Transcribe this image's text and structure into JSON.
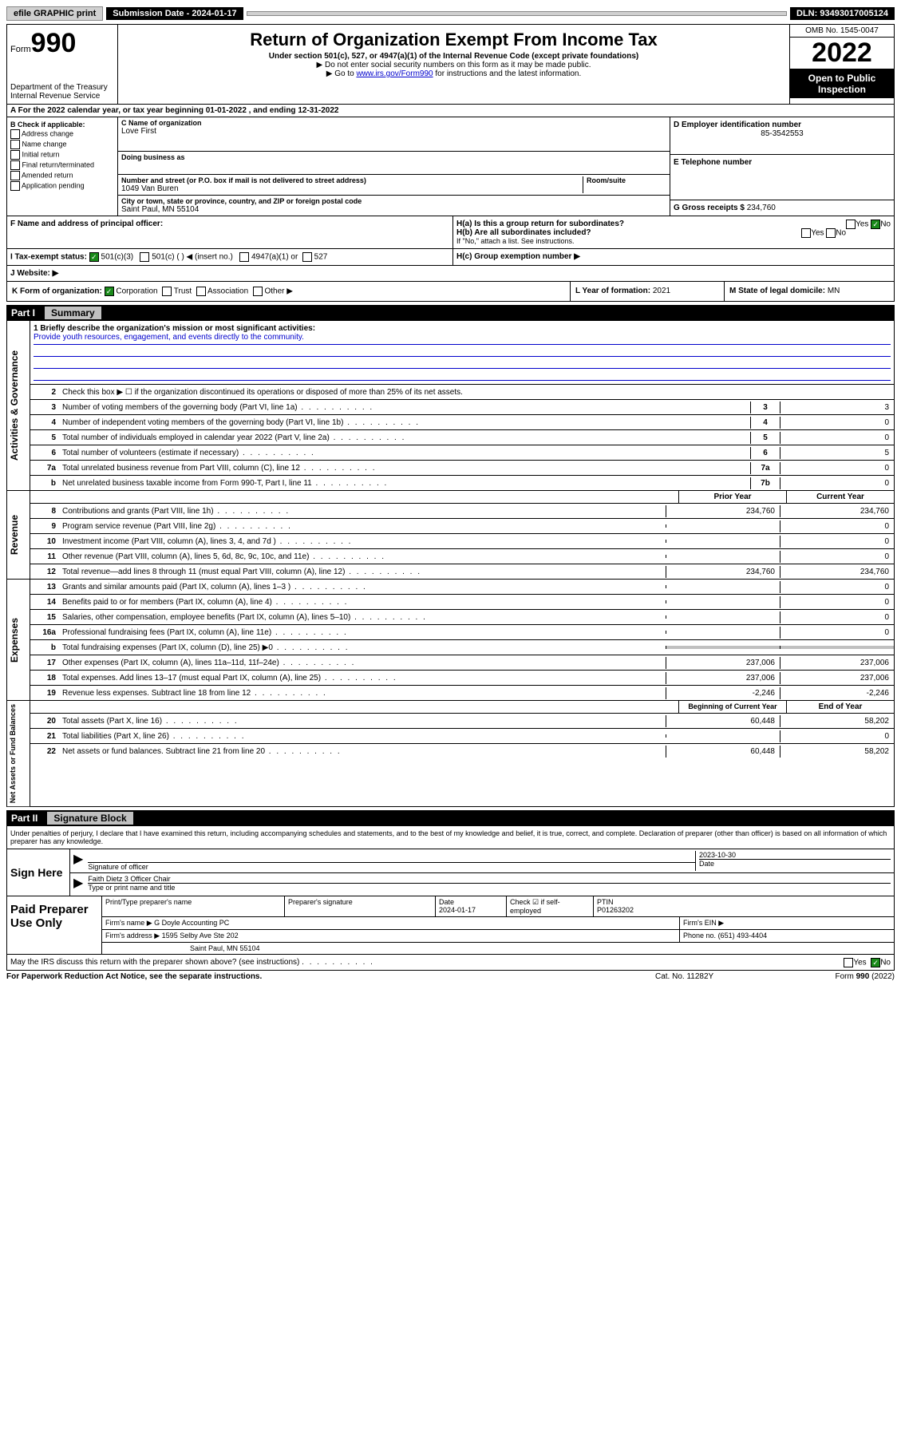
{
  "topbar": {
    "efile": "efile GRAPHIC print",
    "subdate_label": "Submission Date - 2024-01-17",
    "dln": "DLN: 93493017005124"
  },
  "header": {
    "form_label": "Form",
    "form_num": "990",
    "dept": "Department of the Treasury\nInternal Revenue Service",
    "title": "Return of Organization Exempt From Income Tax",
    "subtitle": "Under section 501(c), 527, or 4947(a)(1) of the Internal Revenue Code (except private foundations)",
    "note1": "▶ Do not enter social security numbers on this form as it may be made public.",
    "note2_pre": "▶ Go to ",
    "note2_link": "www.irs.gov/Form990",
    "note2_post": " for instructions and the latest information.",
    "omb": "OMB No. 1545-0047",
    "year": "2022",
    "open": "Open to Public Inspection"
  },
  "row_a": "A For the 2022 calendar year, or tax year beginning 01-01-2022    , and ending 12-31-2022",
  "section_b": {
    "label": "B Check if applicable:",
    "opts": [
      "Address change",
      "Name change",
      "Initial return",
      "Final return/terminated",
      "Amended return",
      "Application pending"
    ]
  },
  "section_c": {
    "name_label": "C Name of organization",
    "name": "Love First",
    "dba": "Doing business as",
    "addr_label": "Number and street (or P.O. box if mail is not delivered to street address)",
    "room": "Room/suite",
    "addr": "1049 Van Buren",
    "city_label": "City or town, state or province, country, and ZIP or foreign postal code",
    "city": "Saint Paul, MN  55104"
  },
  "section_d": {
    "label": "D Employer identification number",
    "val": "85-3542553"
  },
  "section_e": {
    "label": "E Telephone number",
    "val": ""
  },
  "section_g": {
    "label": "G Gross receipts $",
    "val": "234,760"
  },
  "section_f": "F  Name and address of principal officer:",
  "section_h": {
    "a": "H(a)  Is this a group return for subordinates?",
    "b": "H(b)  Are all subordinates included?",
    "b_note": "If \"No,\" attach a list. See instructions.",
    "c": "H(c)  Group exemption number ▶"
  },
  "tax_status": {
    "label": "I  Tax-exempt status:",
    "opts": [
      "501(c)(3)",
      "501(c) (  ) ◀ (insert no.)",
      "4947(a)(1) or",
      "527"
    ]
  },
  "website": "J  Website: ▶",
  "form_org": {
    "label": "K Form of organization:",
    "opts": [
      "Corporation",
      "Trust",
      "Association",
      "Other ▶"
    ],
    "year_label": "L Year of formation:",
    "year_val": "2021",
    "state_label": "M State of legal domicile:",
    "state_val": "MN"
  },
  "part1": {
    "num": "Part I",
    "title": "Summary"
  },
  "mission": {
    "q": "1   Briefly describe the organization's mission or most significant activities:",
    "text": "Provide youth resources, engagement, and events directly to the community."
  },
  "gov_lines": [
    {
      "n": "2",
      "d": "Check this box ▶ ☐  if the organization discontinued its operations or disposed of more than 25% of its net assets."
    },
    {
      "n": "3",
      "d": "Number of voting members of the governing body (Part VI, line 1a)",
      "box": "3",
      "v": "3"
    },
    {
      "n": "4",
      "d": "Number of independent voting members of the governing body (Part VI, line 1b)",
      "box": "4",
      "v": "0"
    },
    {
      "n": "5",
      "d": "Total number of individuals employed in calendar year 2022 (Part V, line 2a)",
      "box": "5",
      "v": "0"
    },
    {
      "n": "6",
      "d": "Total number of volunteers (estimate if necessary)",
      "box": "6",
      "v": "5"
    },
    {
      "n": "7a",
      "d": "Total unrelated business revenue from Part VIII, column (C), line 12",
      "box": "7a",
      "v": "0"
    },
    {
      "n": "b",
      "d": "Net unrelated business taxable income from Form 990-T, Part I, line 11",
      "box": "7b",
      "v": "0"
    }
  ],
  "rev_head": {
    "prior": "Prior Year",
    "current": "Current Year"
  },
  "rev_lines": [
    {
      "n": "8",
      "d": "Contributions and grants (Part VIII, line 1h)",
      "p": "234,760",
      "c": "234,760"
    },
    {
      "n": "9",
      "d": "Program service revenue (Part VIII, line 2g)",
      "p": "",
      "c": "0"
    },
    {
      "n": "10",
      "d": "Investment income (Part VIII, column (A), lines 3, 4, and 7d )",
      "p": "",
      "c": "0"
    },
    {
      "n": "11",
      "d": "Other revenue (Part VIII, column (A), lines 5, 6d, 8c, 9c, 10c, and 11e)",
      "p": "",
      "c": "0"
    },
    {
      "n": "12",
      "d": "Total revenue—add lines 8 through 11 (must equal Part VIII, column (A), line 12)",
      "p": "234,760",
      "c": "234,760"
    }
  ],
  "exp_lines": [
    {
      "n": "13",
      "d": "Grants and similar amounts paid (Part IX, column (A), lines 1–3 )",
      "p": "",
      "c": "0"
    },
    {
      "n": "14",
      "d": "Benefits paid to or for members (Part IX, column (A), line 4)",
      "p": "",
      "c": "0"
    },
    {
      "n": "15",
      "d": "Salaries, other compensation, employee benefits (Part IX, column (A), lines 5–10)",
      "p": "",
      "c": "0"
    },
    {
      "n": "16a",
      "d": "Professional fundraising fees (Part IX, column (A), line 11e)",
      "p": "",
      "c": "0"
    },
    {
      "n": "b",
      "d": "Total fundraising expenses (Part IX, column (D), line 25) ▶0",
      "p": "shaded",
      "c": "shaded"
    },
    {
      "n": "17",
      "d": "Other expenses (Part IX, column (A), lines 11a–11d, 11f–24e)",
      "p": "237,006",
      "c": "237,006"
    },
    {
      "n": "18",
      "d": "Total expenses. Add lines 13–17 (must equal Part IX, column (A), line 25)",
      "p": "237,006",
      "c": "237,006"
    },
    {
      "n": "19",
      "d": "Revenue less expenses. Subtract line 18 from line 12",
      "p": "-2,246",
      "c": "-2,246"
    }
  ],
  "na_head": {
    "prior": "Beginning of Current Year",
    "current": "End of Year"
  },
  "na_lines": [
    {
      "n": "20",
      "d": "Total assets (Part X, line 16)",
      "p": "60,448",
      "c": "58,202"
    },
    {
      "n": "21",
      "d": "Total liabilities (Part X, line 26)",
      "p": "",
      "c": "0"
    },
    {
      "n": "22",
      "d": "Net assets or fund balances. Subtract line 21 from line 20",
      "p": "60,448",
      "c": "58,202"
    }
  ],
  "part2": {
    "num": "Part II",
    "title": "Signature Block"
  },
  "sig_text": "Under penalties of perjury, I declare that I have examined this return, including accompanying schedules and statements, and to the best of my knowledge and belief, it is true, correct, and complete. Declaration of preparer (other than officer) is based on all information of which preparer has any knowledge.",
  "sign": {
    "label": "Sign Here",
    "sig_of": "Signature of officer",
    "date_label": "Date",
    "date": "2023-10-30",
    "name": "Faith Dietz 3 Officer  Chair",
    "name_label": "Type or print name and title"
  },
  "prep": {
    "label": "Paid Preparer Use Only",
    "h1": "Print/Type preparer's name",
    "h2": "Preparer's signature",
    "h3": "Date",
    "h3v": "2024-01-17",
    "h4": "Check ☑ if self-employed",
    "h5": "PTIN",
    "h5v": "P01263202",
    "firm_label": "Firm's name    ▶",
    "firm": "G Doyle Accounting PC",
    "ein_label": "Firm's EIN ▶",
    "addr_label": "Firm's address ▶",
    "addr1": "1595 Selby Ave Ste 202",
    "addr2": "Saint Paul, MN  55104",
    "phone_label": "Phone no.",
    "phone": "(651) 493-4404"
  },
  "discuss": "May the IRS discuss this return with the preparer shown above? (see instructions)",
  "footer": {
    "left": "For Paperwork Reduction Act Notice, see the separate instructions.",
    "mid": "Cat. No. 11282Y",
    "right": "Form 990 (2022)"
  },
  "vert": {
    "gov": "Activities & Governance",
    "rev": "Revenue",
    "exp": "Expenses",
    "na": "Net Assets or Fund Balances"
  },
  "yesno": {
    "yes": "Yes",
    "no": "No"
  }
}
